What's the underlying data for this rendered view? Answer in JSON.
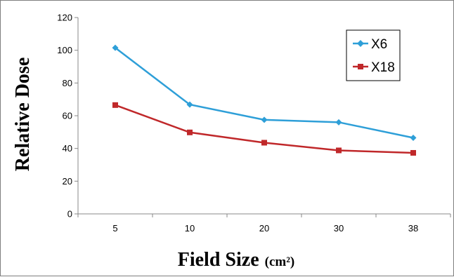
{
  "chart_data": {
    "type": "line",
    "categories": [
      "5",
      "10",
      "20",
      "30",
      "38"
    ],
    "series": [
      {
        "name": "X6",
        "values": [
          101.5,
          66.8,
          57.5,
          56.0,
          46.5
        ],
        "color": "#2e9fd8",
        "marker": "diamond"
      },
      {
        "name": "X18",
        "values": [
          66.5,
          49.8,
          43.5,
          38.8,
          37.3
        ],
        "color": "#c0282a",
        "marker": "square"
      }
    ],
    "xlabel_main": "Field Size",
    "xlabel_unit": "(cm²)",
    "ylabel": "Relative Dose",
    "ylim": [
      0,
      120
    ],
    "yticks": [
      0,
      20,
      40,
      60,
      80,
      100,
      120
    ],
    "grid": false,
    "legend_position": "top-right"
  }
}
